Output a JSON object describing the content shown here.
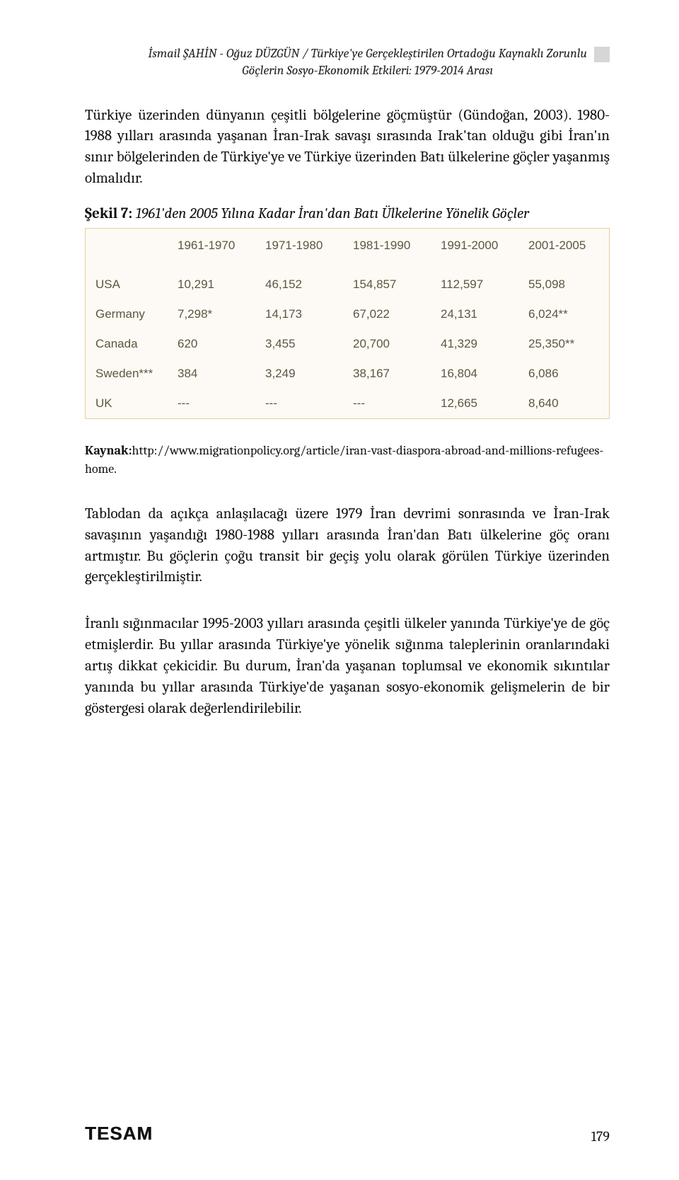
{
  "header": {
    "authors_title": "İsmail ŞAHİN - Oğuz DÜZGÜN / Türkiye'ye Gerçekleştirilen Ortadoğu Kaynaklı Zorunlu",
    "subtitle": "Göçlerin Sosyo-Ekonomik Etkileri: 1979-2014 Arası"
  },
  "paragraphs": {
    "p1": "Türkiye üzerinden dünyanın çeşitli bölgelerine göçmüştür (Gündoğan, 2003). 1980-1988 yılları arasında yaşanan İran-Irak savaşı sırasında Irak'tan olduğu gibi İran'ın sınır bölgelerinden de Türkiye'ye ve Türkiye üzerinden Batı ülkelerine göçler yaşanmış olmalıdır.",
    "p2": "Tablodan da açıkça anlaşılacağı üzere 1979 İran devrimi sonrasında ve İran-Irak savaşının yaşandığı 1980-1988 yılları arasında İran'dan Batı ülkelerine göç oranı artmıştır. Bu göçlerin çoğu transit bir geçiş yolu olarak görülen Türkiye üzerinden gerçekleştirilmiştir.",
    "p3": "İranlı sığınmacılar 1995-2003 yılları arasında çeşitli ülkeler yanında Türkiye'ye de göç etmişlerdir. Bu yıllar arasında Türkiye'ye yönelik sığınma taleplerinin oranlarındaki artış dikkat çekicidir. Bu durum, İran'da yaşanan toplumsal ve ekonomik sıkıntılar yanında bu yıllar arasında Türkiye'de yaşanan sosyo-ekonomik gelişmelerin de bir göstergesi olarak değerlendirilebilir."
  },
  "figure": {
    "label": "Şekil 7:",
    "caption": " 1961'den 2005 Yılına Kadar İran'dan Batı Ülkelerine Yönelik Göçler",
    "table": {
      "type": "table",
      "background_color": "#fdfaf5",
      "border_color": "#e2cfa0",
      "text_color": "#5d5641",
      "font_family": "Verdana, sans-serif",
      "header_fontsize": 17,
      "cell_fontsize": 17,
      "columns": [
        "",
        "1961-1970",
        "1971-1980",
        "1981-1990",
        "1991-2000",
        "2001-2005"
      ],
      "rows": [
        [
          "USA",
          "10,291",
          "46,152",
          "154,857",
          "112,597",
          "55,098"
        ],
        [
          "Germany",
          "7,298*",
          "14,173",
          "67,022",
          "24,131",
          "6,024**"
        ],
        [
          "Canada",
          "620",
          "3,455",
          "20,700",
          "41,329",
          "25,350**"
        ],
        [
          "Sweden***",
          "384",
          "3,249",
          "38,167",
          "16,804",
          "6,086"
        ],
        [
          "UK",
          "---",
          "---",
          "---",
          "12,665",
          "8,640"
        ]
      ]
    }
  },
  "source": {
    "label": "Kaynak:",
    "text": "http://www.migrationpolicy.org/article/iran-vast-diaspora-abroad-and-millions-refugees-home."
  },
  "footer": {
    "brand": "TESAM",
    "page": "179"
  }
}
